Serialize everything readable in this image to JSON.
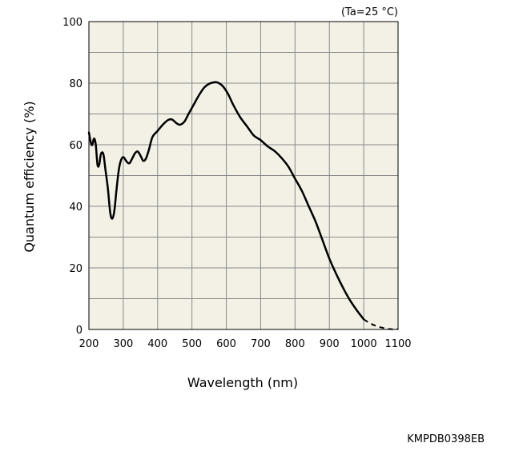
{
  "chart_data": {
    "type": "line",
    "title": "",
    "condition_note": "(Ta=25 °C)",
    "xlabel": "Wavelength (nm)",
    "ylabel": "Quantum efficiency (%)",
    "xlim": [
      200,
      1100
    ],
    "ylim": [
      0,
      100
    ],
    "x_ticks": [
      200,
      300,
      400,
      500,
      600,
      700,
      800,
      900,
      1000,
      1100
    ],
    "y_ticks": [
      0,
      20,
      40,
      60,
      80,
      100
    ],
    "x_grid_step": 100,
    "y_grid_step": 10,
    "grid": true,
    "plot_background": "#f3f0e6",
    "grid_color": "#8a8a8a",
    "line_color": "#000000",
    "series": [
      {
        "style": "solid",
        "points": [
          [
            200,
            64
          ],
          [
            206,
            60.5
          ],
          [
            210,
            60
          ],
          [
            215,
            62
          ],
          [
            220,
            60
          ],
          [
            225,
            53.5
          ],
          [
            230,
            53.5
          ],
          [
            235,
            57
          ],
          [
            242,
            57
          ],
          [
            248,
            52
          ],
          [
            255,
            46
          ],
          [
            262,
            38
          ],
          [
            268,
            36
          ],
          [
            274,
            38.5
          ],
          [
            280,
            45
          ],
          [
            286,
            51
          ],
          [
            292,
            54.5
          ],
          [
            300,
            56
          ],
          [
            310,
            54.5
          ],
          [
            318,
            54
          ],
          [
            326,
            55.5
          ],
          [
            334,
            57.2
          ],
          [
            342,
            57.8
          ],
          [
            350,
            56.5
          ],
          [
            358,
            54.8
          ],
          [
            366,
            55.5
          ],
          [
            375,
            58.5
          ],
          [
            385,
            62.5
          ],
          [
            400,
            64.5
          ],
          [
            415,
            66.5
          ],
          [
            430,
            68
          ],
          [
            442,
            68.2
          ],
          [
            455,
            67
          ],
          [
            465,
            66.5
          ],
          [
            478,
            67.5
          ],
          [
            490,
            70
          ],
          [
            505,
            73
          ],
          [
            520,
            76
          ],
          [
            535,
            78.5
          ],
          [
            550,
            79.8
          ],
          [
            565,
            80.3
          ],
          [
            575,
            80.2
          ],
          [
            590,
            79
          ],
          [
            605,
            76.5
          ],
          [
            620,
            73
          ],
          [
            640,
            69
          ],
          [
            660,
            66
          ],
          [
            680,
            63
          ],
          [
            700,
            61.5
          ],
          [
            720,
            59.5
          ],
          [
            740,
            58
          ],
          [
            760,
            55.8
          ],
          [
            780,
            53
          ],
          [
            800,
            49
          ],
          [
            820,
            45
          ],
          [
            840,
            40
          ],
          [
            860,
            35
          ],
          [
            880,
            29
          ],
          [
            900,
            23
          ],
          [
            920,
            18
          ],
          [
            940,
            13.5
          ],
          [
            960,
            9.5
          ],
          [
            980,
            6.2
          ],
          [
            1000,
            3.3
          ]
        ]
      },
      {
        "style": "dashed",
        "points": [
          [
            1000,
            3.3
          ],
          [
            1020,
            1.9
          ],
          [
            1040,
            1.0
          ],
          [
            1060,
            0.4
          ],
          [
            1080,
            0.1
          ],
          [
            1100,
            0.1
          ]
        ]
      }
    ]
  },
  "figure_code": "KMPDB0398EB"
}
